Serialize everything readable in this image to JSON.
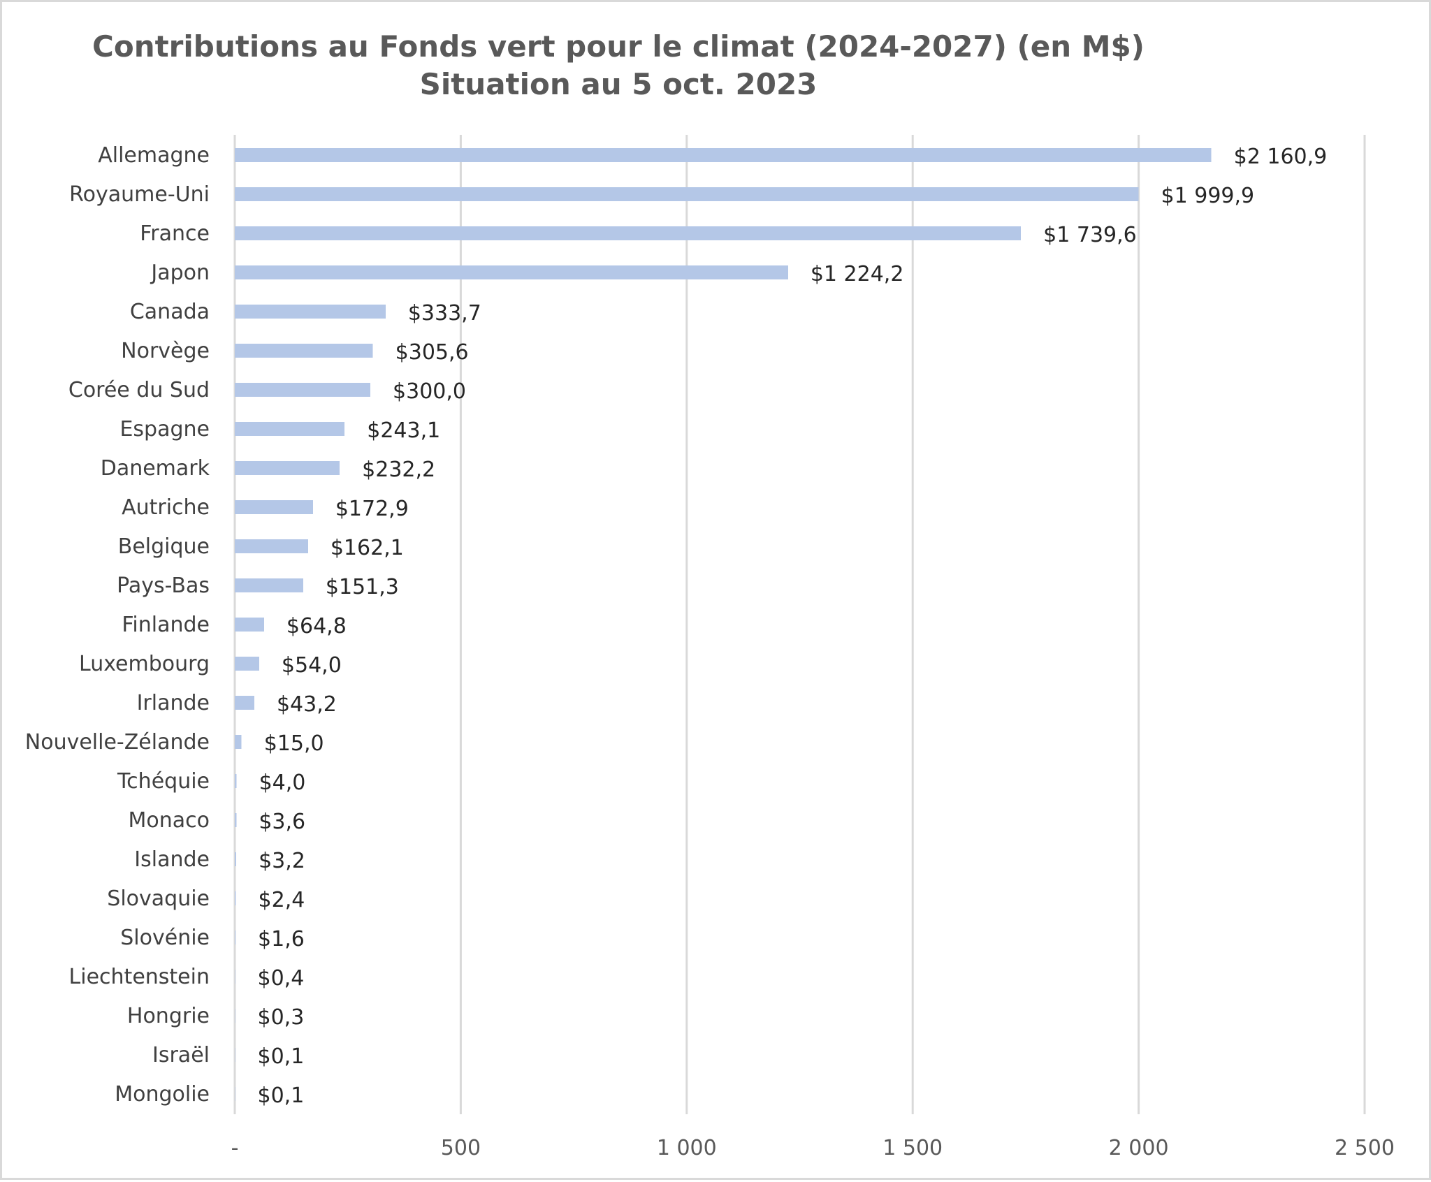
{
  "chart_data": {
    "type": "bar",
    "orientation": "horizontal",
    "title": "Contributions au Fonds vert pour le climat (2024-2027) (en M$)",
    "subtitle": "Situation au 5 oct. 2023",
    "categories": [
      "Allemagne",
      "Royaume-Uni",
      "France",
      "Japon",
      "Canada",
      "Norvège",
      "Corée du Sud",
      "Espagne",
      "Danemark",
      "Autriche",
      "Belgique",
      "Pays-Bas",
      "Finlande",
      "Luxembourg",
      "Irlande",
      "Nouvelle-Zélande",
      "Tchéquie",
      "Monaco",
      "Islande",
      "Slovaquie",
      "Slovénie",
      "Liechtenstein",
      "Hongrie",
      "Israël",
      "Mongolie"
    ],
    "values": [
      2160.9,
      1999.9,
      1739.6,
      1224.2,
      333.7,
      305.6,
      300.0,
      243.1,
      232.2,
      172.9,
      162.1,
      151.3,
      64.8,
      54.0,
      43.2,
      15.0,
      4.0,
      3.6,
      3.2,
      2.4,
      1.6,
      0.4,
      0.3,
      0.1,
      0.1
    ],
    "value_labels": [
      "$2 160,9",
      "$1 999,9",
      "$1 739,6",
      "$1 224,2",
      "$333,7",
      "$305,6",
      "$300,0",
      "$243,1",
      "$232,2",
      "$172,9",
      "$162,1",
      "$151,3",
      "$64,8",
      "$54,0",
      "$43,2",
      "$15,0",
      "$4,0",
      "$3,6",
      "$3,2",
      "$2,4",
      "$1,6",
      "$0,4",
      "$0,3",
      "$0,1",
      "$0,1"
    ],
    "xlim": [
      0,
      2500
    ],
    "x_ticks": [
      0,
      500,
      1000,
      1500,
      2000,
      2500
    ],
    "x_tick_labels": [
      "-",
      "500",
      "1 000",
      "1 500",
      "2 000",
      "2 500"
    ],
    "xlabel": "",
    "ylabel": "",
    "grid": true,
    "legend": "none",
    "colors": {
      "bar": "#b4c7e7",
      "grid": "#d9d9d9",
      "title": "#595959"
    }
  }
}
